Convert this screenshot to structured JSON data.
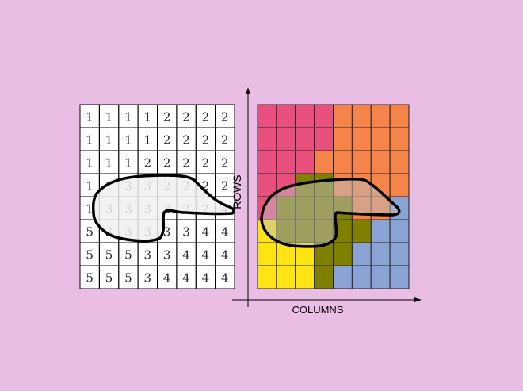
{
  "background_color": "#eabde4",
  "left_grid": {
    "rows": [
      [
        "1",
        "1",
        "1",
        "1",
        "2",
        "2",
        "2",
        "2"
      ],
      [
        "1",
        "1",
        "1",
        "1",
        "2",
        "2",
        "2",
        "2"
      ],
      [
        "1",
        "1",
        "1",
        "2",
        "2",
        "2",
        "2",
        "2"
      ],
      [
        "1",
        "1",
        "3",
        "3",
        "2",
        "2",
        "2",
        "2"
      ],
      [
        "1",
        "3",
        "3",
        "3",
        "3",
        "2",
        "2",
        "4"
      ],
      [
        "5",
        "3",
        "3",
        "3",
        "3",
        "3",
        "4",
        "4"
      ],
      [
        "5",
        "5",
        "5",
        "3",
        "3",
        "4",
        "4",
        "4"
      ],
      [
        "5",
        "5",
        "5",
        "3",
        "4",
        "4",
        "4",
        "4"
      ]
    ]
  },
  "right_grid": {
    "category_colors": {
      "1": "#e8507e",
      "2": "#f5844a",
      "3": "#808000",
      "4": "#8aa2d4",
      "5": "#ffe414"
    }
  },
  "axes": {
    "y_label": "ROWS",
    "x_label": "COLUMNS"
  }
}
